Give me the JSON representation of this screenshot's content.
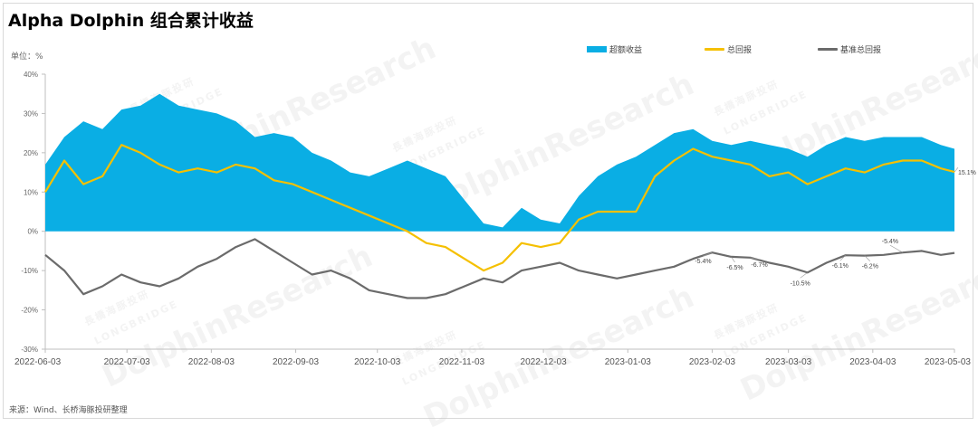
{
  "title": "Alpha Dolphin 组合累计收益",
  "unit_label": "单位：%",
  "source": "来源：Wind、长桥海豚投研整理",
  "watermark": {
    "brand": "DolphinResearch",
    "sub": "LONGBRIDGE",
    "cn": "長橋海豚投研"
  },
  "legend": [
    {
      "name": "超额收益",
      "color": "#0aaee4",
      "kind": "area"
    },
    {
      "name": "总回报",
      "color": "#f5c000",
      "kind": "line"
    },
    {
      "name": "基准总回报",
      "color": "#6b6b6b",
      "kind": "line"
    }
  ],
  "chart_data": {
    "type": "line",
    "title": "Alpha Dolphin 组合累计收益",
    "ylabel": "单位：%",
    "ylim": [
      -30,
      40
    ],
    "yticks": [
      -30,
      -20,
      -10,
      0,
      10,
      20,
      30,
      40
    ],
    "ytick_labels": [
      "-30%",
      "-20%",
      "-10%",
      "0%",
      "10%",
      "20%",
      "30%",
      "40%"
    ],
    "xlim": [
      "2022-06-03",
      "2023-05-03"
    ],
    "xticks": [
      "2022-06-03",
      "2022-07-03",
      "2022-08-03",
      "2022-09-03",
      "2022-10-03",
      "2022-11-03",
      "2022-12-03",
      "2023-01-03",
      "2023-02-03",
      "2023-03-03",
      "2023-04-03",
      "2023-05-03"
    ],
    "grid": false,
    "legend_position": "top-right",
    "series": [
      {
        "name": "超额收益",
        "type": "area",
        "color": "#0aaee4",
        "x": [
          "2022-06-03",
          "2022-06-10",
          "2022-06-17",
          "2022-06-24",
          "2022-07-01",
          "2022-07-08",
          "2022-07-15",
          "2022-07-22",
          "2022-07-29",
          "2022-08-05",
          "2022-08-12",
          "2022-08-19",
          "2022-08-26",
          "2022-09-02",
          "2022-09-09",
          "2022-09-16",
          "2022-09-23",
          "2022-09-30",
          "2022-10-07",
          "2022-10-14",
          "2022-10-21",
          "2022-10-28",
          "2022-11-04",
          "2022-11-11",
          "2022-11-18",
          "2022-11-25",
          "2022-12-02",
          "2022-12-09",
          "2022-12-16",
          "2022-12-23",
          "2022-12-30",
          "2023-01-06",
          "2023-01-13",
          "2023-01-20",
          "2023-01-27",
          "2023-02-03",
          "2023-02-10",
          "2023-02-17",
          "2023-02-24",
          "2023-03-03",
          "2023-03-10",
          "2023-03-17",
          "2023-03-24",
          "2023-03-31",
          "2023-04-07",
          "2023-04-14",
          "2023-04-21",
          "2023-04-28",
          "2023-05-03"
        ],
        "values": [
          17,
          24,
          28,
          26,
          31,
          32,
          35,
          32,
          31,
          30,
          28,
          24,
          25,
          24,
          20,
          18,
          15,
          14,
          16,
          18,
          16,
          14,
          8,
          2,
          1,
          6,
          3,
          2,
          9,
          14,
          17,
          19,
          22,
          25,
          26,
          23,
          22,
          23,
          22,
          21,
          19,
          22,
          24,
          23,
          24,
          24,
          24,
          22,
          21
        ]
      },
      {
        "name": "总回报",
        "type": "line",
        "color": "#f5c000",
        "x": [
          "2022-06-03",
          "2022-06-10",
          "2022-06-17",
          "2022-06-24",
          "2022-07-01",
          "2022-07-08",
          "2022-07-15",
          "2022-07-22",
          "2022-07-29",
          "2022-08-05",
          "2022-08-12",
          "2022-08-19",
          "2022-08-26",
          "2022-09-02",
          "2022-09-09",
          "2022-09-16",
          "2022-09-23",
          "2022-09-30",
          "2022-10-07",
          "2022-10-14",
          "2022-10-21",
          "2022-10-28",
          "2022-11-04",
          "2022-11-11",
          "2022-11-18",
          "2022-11-25",
          "2022-12-02",
          "2022-12-09",
          "2022-12-16",
          "2022-12-23",
          "2022-12-30",
          "2023-01-06",
          "2023-01-13",
          "2023-01-20",
          "2023-01-27",
          "2023-02-03",
          "2023-02-10",
          "2023-02-17",
          "2023-02-24",
          "2023-03-03",
          "2023-03-10",
          "2023-03-17",
          "2023-03-24",
          "2023-03-31",
          "2023-04-07",
          "2023-04-14",
          "2023-04-21",
          "2023-04-28",
          "2023-05-03"
        ],
        "values": [
          10,
          18,
          12,
          14,
          22,
          20,
          17,
          15,
          16,
          15,
          17,
          16,
          13,
          12,
          10,
          8,
          6,
          4,
          2,
          0,
          -3,
          -4,
          -7,
          -10,
          -8,
          -3,
          -4,
          -3,
          3,
          5,
          5,
          5,
          14,
          18,
          21,
          19,
          18,
          17,
          14,
          15,
          12,
          14,
          16,
          15,
          17,
          18,
          18,
          16,
          15.1
        ]
      },
      {
        "name": "基准总回报",
        "type": "line",
        "color": "#6b6b6b",
        "x": [
          "2022-06-03",
          "2022-06-10",
          "2022-06-17",
          "2022-06-24",
          "2022-07-01",
          "2022-07-08",
          "2022-07-15",
          "2022-07-22",
          "2022-07-29",
          "2022-08-05",
          "2022-08-12",
          "2022-08-19",
          "2022-08-26",
          "2022-09-02",
          "2022-09-09",
          "2022-09-16",
          "2022-09-23",
          "2022-09-30",
          "2022-10-07",
          "2022-10-14",
          "2022-10-21",
          "2022-10-28",
          "2022-11-04",
          "2022-11-11",
          "2022-11-18",
          "2022-11-25",
          "2022-12-02",
          "2022-12-09",
          "2022-12-16",
          "2022-12-23",
          "2022-12-30",
          "2023-01-06",
          "2023-01-13",
          "2023-01-20",
          "2023-01-27",
          "2023-02-03",
          "2023-02-10",
          "2023-02-17",
          "2023-02-24",
          "2023-03-03",
          "2023-03-10",
          "2023-03-17",
          "2023-03-24",
          "2023-03-31",
          "2023-04-07",
          "2023-04-14",
          "2023-04-21",
          "2023-04-28",
          "2023-05-03"
        ],
        "values": [
          -6,
          -10,
          -16,
          -14,
          -11,
          -13,
          -14,
          -12,
          -9,
          -7,
          -4,
          -2,
          -5,
          -8,
          -11,
          -10,
          -12,
          -15,
          -16,
          -17,
          -17,
          -16,
          -14,
          -12,
          -13,
          -10,
          -9,
          -8,
          -10,
          -11,
          -12,
          -11,
          -10,
          -9,
          -7,
          -5.4,
          -6.5,
          -6.7,
          -8,
          -9,
          -10.5,
          -8,
          -6.1,
          -6.2,
          -6,
          -5.4,
          -5,
          -6,
          -5.5
        ]
      }
    ],
    "annotations": [
      {
        "label": "-5.4%",
        "series": "基准总回报",
        "x": "2023-02-03",
        "y": -5.4
      },
      {
        "label": "-6.5%",
        "series": "基准总回报",
        "x": "2023-02-10",
        "y": -6.5
      },
      {
        "label": "-6.7%",
        "series": "基准总回报",
        "x": "2023-02-17",
        "y": -6.7
      },
      {
        "label": "-10.5%",
        "series": "基准总回报",
        "x": "2023-03-10",
        "y": -10.5
      },
      {
        "label": "-6.1%",
        "series": "基准总回报",
        "x": "2023-03-24",
        "y": -6.1
      },
      {
        "label": "-6.2%",
        "series": "基准总回报",
        "x": "2023-03-31",
        "y": -6.2
      },
      {
        "label": "-5.4%",
        "series": "基准总回报",
        "x": "2023-04-14",
        "y": -5.4
      },
      {
        "label": "15.1%",
        "series": "总回报",
        "x": "2023-05-03",
        "y": 15.1
      }
    ]
  }
}
